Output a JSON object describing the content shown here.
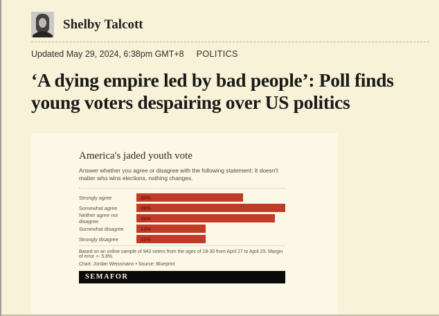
{
  "page": {
    "background_color": "#f7f2d8",
    "author": {
      "name": "Shelby Talcott"
    },
    "meta": {
      "updated": "Updated May 29, 2024, 6:38pm GMT+8",
      "category": "POLITICS"
    },
    "headline": "‘A dying empire led by bad people’: Poll finds young voters despairing over US politics"
  },
  "chart_card": {
    "background_color": "#fbf8e8",
    "title": "America's jaded youth vote",
    "subtitle": "Answer whether you agree or disagree with the following statement: It doesn't matter who wins elections, nothing changes.",
    "footnote": "Based on an online sample of 943 voters from the ages of 18-30 from April 27 to April 29. Margin of error +- 5.8%.",
    "credit": "Chart: Jordan Weissmann • Source: Blueprint",
    "logo_text": "SEMAFOR",
    "logo_bar_color": "#0a0a0a",
    "bar_color": "#c23a28",
    "value_label_color": "#6f1a0f"
  },
  "chart_data": {
    "type": "bar",
    "orientation": "horizontal",
    "title": "America's jaded youth vote",
    "subtitle": "Answer whether you agree or disagree with the following statement: It doesn't matter who wins elections, nothing changes.",
    "categories": [
      "Strongly agree",
      "Somewhat agree",
      "Neither agree nor disagree",
      "Somewhat disagree",
      "Strongly disagree"
    ],
    "values": [
      20,
      28,
      26,
      13,
      13
    ],
    "value_labels": [
      "20%",
      "28%",
      "26%",
      "13%",
      "13%"
    ],
    "xlim": [
      0,
      28
    ],
    "grid": false,
    "legend": false,
    "bar_color": "#c23a28"
  }
}
